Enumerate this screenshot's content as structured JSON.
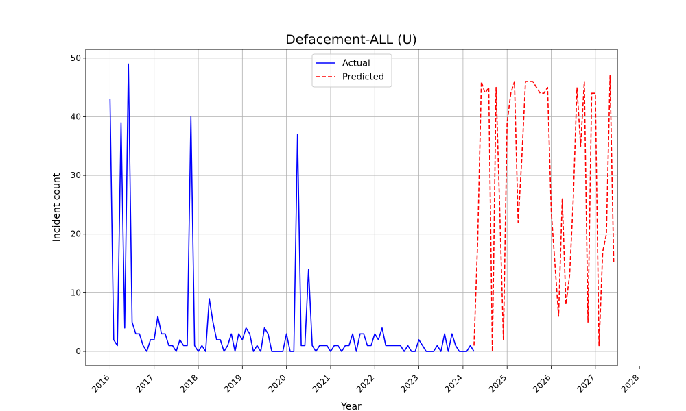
{
  "chart_data": {
    "type": "line",
    "title": "Defacement-ALL (U)",
    "xlabel": "Year",
    "ylabel": "Incident count",
    "xlim": [
      2015.45,
      2027.5
    ],
    "ylim": [
      -2.45,
      51.5
    ],
    "x_ticks": [
      2016,
      2017,
      2018,
      2019,
      2020,
      2021,
      2022,
      2023,
      2024,
      2025,
      2026,
      2027,
      2028
    ],
    "x_tick_labels": [
      "2016",
      "2017",
      "2018",
      "2019",
      "2020",
      "2021",
      "2022",
      "2023",
      "2024",
      "2025",
      "2026",
      "2027",
      "2028"
    ],
    "y_ticks": [
      0,
      10,
      20,
      30,
      40,
      50
    ],
    "y_tick_labels": [
      "0",
      "10",
      "20",
      "30",
      "40",
      "50"
    ],
    "grid": true,
    "legend": "upper-center",
    "series": [
      {
        "name": "Actual",
        "color": "#0000ff",
        "style": "solid",
        "start": "2016-01",
        "step": "month",
        "values": [
          43,
          2,
          1,
          39,
          4,
          49,
          5,
          3,
          3,
          1,
          0,
          2,
          2,
          6,
          3,
          3,
          1,
          1,
          0,
          2,
          1,
          1,
          40,
          1,
          0,
          1,
          0,
          9,
          5,
          2,
          2,
          0,
          1,
          3,
          0,
          3,
          2,
          4,
          3,
          0,
          1,
          0,
          4,
          3,
          0,
          0,
          0,
          0,
          3,
          0,
          0,
          37,
          1,
          1,
          14,
          1,
          0,
          1,
          1,
          1,
          0,
          1,
          1,
          0,
          1,
          1,
          3,
          0,
          3,
          3,
          1,
          1,
          3,
          2,
          4,
          1,
          1,
          1,
          1,
          1,
          0,
          1,
          0,
          0,
          2,
          1,
          0,
          0,
          0,
          1,
          0,
          3,
          0,
          3,
          1,
          0,
          0,
          0,
          1,
          0
        ]
      },
      {
        "name": "Predicted",
        "color": "#ff0000",
        "style": "dashed",
        "start": "2024-04",
        "step": "month",
        "values": [
          1,
          19,
          46,
          44,
          45,
          0,
          45,
          24,
          2,
          39,
          44,
          46,
          22,
          33,
          46,
          46,
          46,
          45,
          44,
          44,
          45,
          24,
          15,
          6,
          26,
          8,
          13,
          26,
          45,
          35,
          46,
          5,
          44,
          44,
          1,
          17,
          20,
          47,
          15
        ]
      }
    ]
  }
}
